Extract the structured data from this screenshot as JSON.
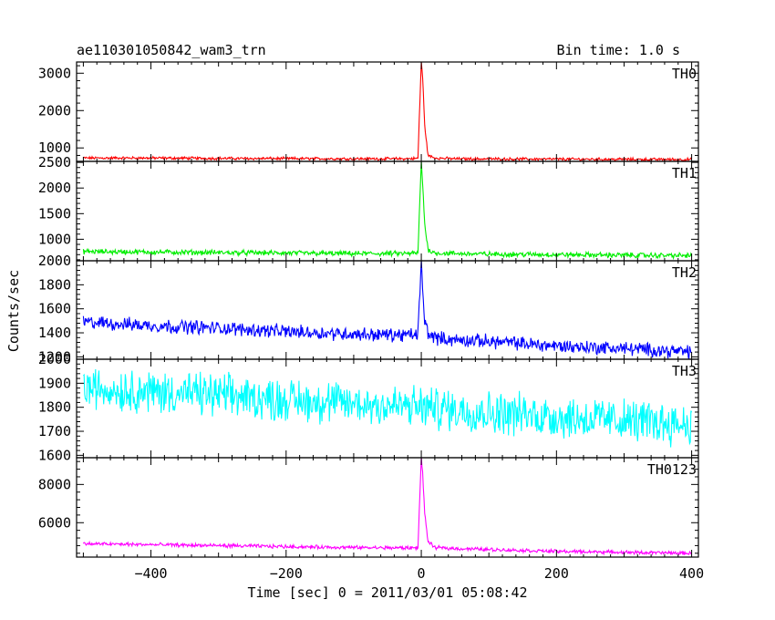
{
  "chart_data": {
    "type": "line",
    "title": "ae110301050842_wam3_trn",
    "subtitle": "Bin time: 1.0 s",
    "xlabel": "Time [sec] 0 = 2011/03/01 05:08:42",
    "ylabel": "Counts/sec",
    "xlim": [
      -510,
      410
    ],
    "x_ticks": [
      -400,
      -200,
      0,
      200,
      400
    ],
    "grid": false,
    "panels": [
      {
        "name": "TH0",
        "color": "#ff0000",
        "ylim": [
          640,
          3300
        ],
        "y_ticks": [
          1000,
          2000,
          3000
        ],
        "series": [
          {
            "x": [
              -500,
              -400,
              -300,
              -200,
              -100,
              -20,
              -5,
              0,
              2,
              5,
              10,
              20,
              50,
              100,
              200,
              300,
              400
            ],
            "y": [
              730,
              730,
              720,
              715,
              710,
              710,
              720,
              3300,
              2900,
              1600,
              800,
              730,
              710,
              705,
              700,
              695,
              690
            ],
            "noise": 60
          }
        ]
      },
      {
        "name": "TH1",
        "color": "#00ee00",
        "ylim": [
          580,
          2520
        ],
        "y_ticks": [
          1000,
          1500,
          2000,
          2500
        ],
        "series": [
          {
            "x": [
              -500,
              -400,
              -300,
              -200,
              -100,
              -20,
              -5,
              0,
              2,
              5,
              10,
              20,
              50,
              100,
              200,
              300,
              400
            ],
            "y": [
              760,
              750,
              740,
              730,
              720,
              720,
              730,
              2500,
              2100,
              1300,
              800,
              730,
              720,
              710,
              700,
              690,
              680
            ],
            "noise": 80
          }
        ]
      },
      {
        "name": "TH2",
        "color": "#0000ff",
        "ylim": [
          1180,
          2000
        ],
        "y_ticks": [
          1200,
          1400,
          1600,
          1800,
          2000
        ],
        "series": [
          {
            "x": [
              -500,
              -400,
              -300,
              -200,
              -100,
              -20,
              -5,
              0,
              2,
              5,
              10,
              20,
              50,
              100,
              200,
              300,
              400
            ],
            "y": [
              1490,
              1460,
              1440,
              1410,
              1390,
              1380,
              1390,
              1980,
              1750,
              1500,
              1400,
              1360,
              1340,
              1330,
              1290,
              1270,
              1240
            ],
            "noise": 90
          }
        ]
      },
      {
        "name": "TH3",
        "color": "#00ffff",
        "ylim": [
          1590,
          2000
        ],
        "y_ticks": [
          1600,
          1700,
          1800,
          1900,
          2000
        ],
        "series": [
          {
            "x": [
              -500,
              -400,
              -300,
              -200,
              -100,
              0,
              100,
              200,
              300,
              400
            ],
            "y": [
              1880,
              1865,
              1850,
              1830,
              1815,
              1800,
              1780,
              1760,
              1745,
              1730
            ],
            "noise": 140
          }
        ]
      },
      {
        "name": "TH0123",
        "color": "#ff00ff",
        "ylim": [
          4200,
          9400
        ],
        "y_ticks": [
          6000,
          8000
        ],
        "series": [
          {
            "x": [
              -500,
              -400,
              -300,
              -200,
              -100,
              -20,
              -5,
              0,
              2,
              5,
              10,
              20,
              50,
              100,
              200,
              300,
              400
            ],
            "y": [
              4900,
              4850,
              4800,
              4750,
              4700,
              4680,
              4700,
              9400,
              8600,
              6500,
              5000,
              4700,
              4650,
              4600,
              4500,
              4450,
              4400
            ],
            "noise": 150
          }
        ]
      }
    ]
  }
}
